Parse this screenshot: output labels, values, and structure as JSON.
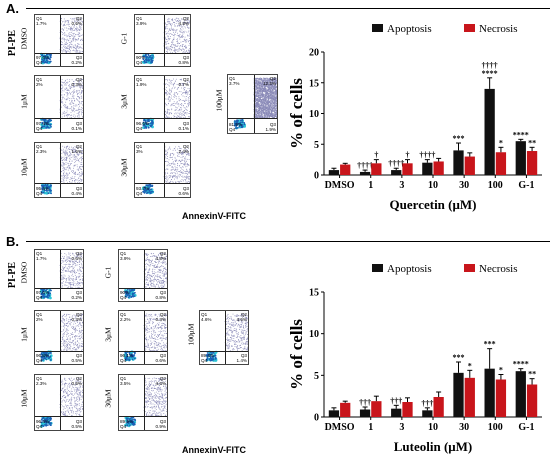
{
  "panelA": {
    "label": "A.",
    "y_axis_label": "PI-PE",
    "x_axis_label": "AnnexinV-FITC",
    "plots": [
      {
        "label": "DMSO",
        "q1": "Q1\n1.7%",
        "q2": "Q2\n0.6%",
        "q3": "Q3\n0.2%",
        "q4": "97.6%\nQ4"
      },
      {
        "label": "G-1",
        "q1": "Q1\n3.9%",
        "q2": "Q2\n4.8%",
        "q3": "Q3\n0.8%",
        "q4": "90%\nQ4"
      },
      {
        "label": "1μM",
        "q1": "Q1\n2%",
        "q2": "Q2\n0.3%",
        "q3": "Q3\n0.1%",
        "q4": "97.4%\nQ4"
      },
      {
        "label": "3μM",
        "q1": "Q1\n1.9%",
        "q2": "Q2\n0.7%",
        "q3": "Q3\n0.1%",
        "q4": "96.6%\nQ4"
      },
      {
        "label": "100μM",
        "q1": "Q1\n3.7%",
        "q2": "Q2\n12.5%",
        "q3": "Q3\n1.9%",
        "q4": "81.9%\nQ4"
      },
      {
        "label": "10μM",
        "q1": "Q1\n2.3%",
        "q2": "Q2\n1.6%",
        "q3": "Q3\n0.4%",
        "q4": "95.4%\nQ4"
      },
      {
        "label": "30μM",
        "q1": "Q1\n3%",
        "q2": "Q2\n2.4%",
        "q3": "Q3\n0.6%",
        "q4": "93.7%\nQ4"
      }
    ]
  },
  "panelB": {
    "label": "B.",
    "y_axis_label": "PI-PE",
    "x_axis_label": "AnnexinV-FITC",
    "plots": [
      {
        "label": "DMSO",
        "q1": "Q1\n1.7%",
        "q2": "Q2\n0.6%",
        "q3": "Q3\n0.2%",
        "q4": "97.6%\nQ4"
      },
      {
        "label": "G-1",
        "q1": "Q1\n3.9%",
        "q2": "Q2\n4.8%",
        "q3": "Q3\n0.8%",
        "q4": "90%\nQ4"
      },
      {
        "label": "1μM",
        "q1": "Q1\n2%",
        "q2": "Q2\n0.3%",
        "q3": "Q3\n0.5%",
        "q4": "96.8%\nQ4"
      },
      {
        "label": "3μM",
        "q1": "Q1\n2.2%",
        "q2": "Q2\n0.3%",
        "q3": "Q3\n0.6%",
        "q4": "96.1%\nQ4"
      },
      {
        "label": "100μM",
        "q1": "Q1\n4.6%",
        "q2": "Q2\n4.5%",
        "q3": "Q3\n1.4%",
        "q4": "89.4%\nQ4"
      },
      {
        "label": "10μM",
        "q1": "Q1\n2.3%",
        "q2": "Q2\n0.6%",
        "q3": "Q3\n0.5%",
        "q4": "96.4%\nQ4"
      },
      {
        "label": "30μM",
        "q1": "Q1\n3.5%",
        "q2": "Q2\n4.6%",
        "q3": "Q3\n0.9%",
        "q4": "89.9%\nQ4"
      }
    ]
  },
  "colors": {
    "apoptosis": "#111111",
    "necrosis": "#c8151b",
    "cells_blue": "#1a5fb4",
    "cells_cyan": "#2ec4d6"
  },
  "chart_data": [
    {
      "type": "bar",
      "xlabel": "Quercetin (μM)",
      "ylabel": "% of cells",
      "ylim": [
        0,
        20
      ],
      "yticks": [
        0,
        5,
        10,
        15,
        20
      ],
      "legend_position": "top",
      "categories": [
        "DMSO",
        "1",
        "3",
        "10",
        "30",
        "100",
        "G-1"
      ],
      "series": [
        {
          "name": "Apoptosis",
          "values": [
            0.8,
            0.5,
            0.8,
            2.0,
            4.0,
            14.0,
            5.5
          ],
          "errors": [
            0.3,
            0.3,
            0.3,
            0.5,
            1.2,
            1.8,
            0.3
          ]
        },
        {
          "name": "Necrosis",
          "values": [
            1.7,
            1.9,
            1.9,
            2.2,
            3.0,
            3.7,
            3.9
          ],
          "errors": [
            0.2,
            0.6,
            0.6,
            0.5,
            0.6,
            0.8,
            0.6
          ]
        }
      ],
      "annotations": {
        "Apoptosis": [
          "",
          "††††",
          "††††",
          "††††",
          "***",
          "††††\n****",
          "****"
        ],
        "Necrosis": [
          "",
          "†",
          "†",
          "",
          "",
          "*",
          "**"
        ]
      }
    },
    {
      "type": "bar",
      "xlabel": "Luteolin (μM)",
      "ylabel": "% of cells",
      "ylim": [
        0,
        15
      ],
      "yticks": [
        0,
        5,
        10,
        15
      ],
      "legend_position": "top",
      "categories": [
        "DMSO",
        "1",
        "3",
        "10",
        "30",
        "100",
        "G-1"
      ],
      "series": [
        {
          "name": "Apoptosis",
          "values": [
            0.8,
            0.9,
            1.0,
            0.8,
            5.3,
            5.8,
            5.5
          ],
          "errors": [
            0.3,
            0.3,
            0.4,
            0.3,
            1.3,
            2.4,
            0.3
          ]
        },
        {
          "name": "Necrosis",
          "values": [
            1.7,
            1.9,
            1.8,
            2.4,
            4.7,
            4.5,
            3.9
          ],
          "errors": [
            0.2,
            0.6,
            0.5,
            0.6,
            0.9,
            0.6,
            0.7
          ]
        }
      ],
      "annotations": {
        "Apoptosis": [
          "",
          "†††",
          "†††",
          "†††",
          "***",
          "***",
          "****"
        ],
        "Necrosis": [
          "",
          "",
          "",
          "",
          "*",
          "*",
          "**"
        ]
      }
    }
  ]
}
